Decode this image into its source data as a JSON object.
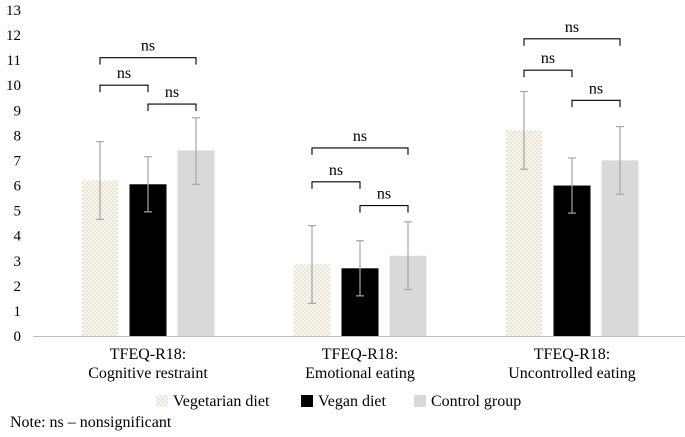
{
  "chart_data": {
    "type": "bar",
    "categories": [
      [
        "TFEQ-R18:",
        "Cognitive restraint"
      ],
      [
        "TFEQ-R18:",
        "Emotional eating"
      ],
      [
        "TFEQ-R18:",
        "Uncontrolled eating"
      ]
    ],
    "series": [
      {
        "name": "Vegetarian diet",
        "values": [
          6.2,
          2.85,
          8.2
        ],
        "error_low": [
          4.65,
          1.3,
          6.65
        ],
        "error_high": [
          7.75,
          4.4,
          9.75
        ],
        "color": "#f2efe4",
        "pattern": "dots"
      },
      {
        "name": "Vegan diet",
        "values": [
          6.05,
          2.7,
          6.0
        ],
        "error_low": [
          4.95,
          1.6,
          4.9
        ],
        "error_high": [
          7.15,
          3.8,
          7.1
        ],
        "color": "#000000",
        "pattern": "solid"
      },
      {
        "name": "Control group",
        "values": [
          7.4,
          3.2,
          7.0
        ],
        "error_low": [
          6.05,
          1.85,
          5.65
        ],
        "error_high": [
          8.7,
          4.55,
          8.35
        ],
        "color": "#d9d9d9",
        "pattern": "solid"
      }
    ],
    "ylim": [
      0,
      13
    ],
    "yticks": [
      "0",
      "1",
      "2",
      "3",
      "4",
      "5",
      "6",
      "7",
      "8",
      "9",
      "10",
      "11",
      "12",
      "13"
    ],
    "significance": [
      {
        "category": 0,
        "from": 0,
        "to": 1,
        "y": 10.0,
        "label": "ns"
      },
      {
        "category": 0,
        "from": 1,
        "to": 2,
        "y": 9.25,
        "label": "ns"
      },
      {
        "category": 0,
        "from": 0,
        "to": 2,
        "y": 11.1,
        "label": "ns"
      },
      {
        "category": 1,
        "from": 0,
        "to": 1,
        "y": 6.15,
        "label": "ns"
      },
      {
        "category": 1,
        "from": 1,
        "to": 2,
        "y": 5.2,
        "label": "ns"
      },
      {
        "category": 1,
        "from": 0,
        "to": 2,
        "y": 7.5,
        "label": "ns"
      },
      {
        "category": 2,
        "from": 0,
        "to": 1,
        "y": 10.6,
        "label": "ns"
      },
      {
        "category": 2,
        "from": 1,
        "to": 2,
        "y": 9.4,
        "label": "ns"
      },
      {
        "category": 2,
        "from": 0,
        "to": 2,
        "y": 11.85,
        "label": "ns"
      }
    ],
    "title": "",
    "xlabel": "",
    "ylabel": "",
    "legend_position": "bottom"
  },
  "note": "Note: ns – nonsignificant"
}
